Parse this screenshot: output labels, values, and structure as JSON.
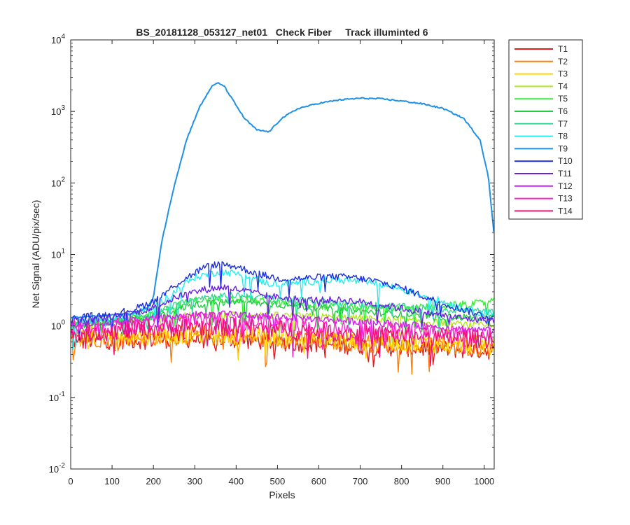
{
  "chart_data": {
    "type": "line",
    "title": "BS_20181128_053127_net01   Check Fiber     Track illuminted 6",
    "xlabel": "Pixels",
    "ylabel": "Net Signal (ADU/pix/sec)",
    "xlim": [
      0,
      1024
    ],
    "ylim": [
      0.01,
      10000
    ],
    "yscale": "log",
    "xticks": [
      0,
      100,
      200,
      300,
      400,
      500,
      600,
      700,
      800,
      900,
      1000
    ],
    "yticks": [
      {
        "value": 0.01,
        "base": "10",
        "exp": "-2"
      },
      {
        "value": 0.1,
        "base": "10",
        "exp": "-1"
      },
      {
        "value": 1,
        "base": "10",
        "exp": "0"
      },
      {
        "value": 10,
        "base": "10",
        "exp": "1"
      },
      {
        "value": 100,
        "base": "10",
        "exp": "2"
      },
      {
        "value": 1000,
        "base": "10",
        "exp": "3"
      },
      {
        "value": 10000,
        "base": "10",
        "exp": "4"
      }
    ],
    "grid": false,
    "legend_position": "outside-right-top",
    "series": [
      {
        "name": "T1",
        "color": "#e41a1c",
        "x": [
          0,
          100,
          200,
          300,
          400,
          500,
          600,
          700,
          800,
          900,
          1000,
          1024
        ],
        "y": [
          0.62,
          0.63,
          0.65,
          0.66,
          0.65,
          0.6,
          0.56,
          0.53,
          0.5,
          0.48,
          0.46,
          0.45
        ]
      },
      {
        "name": "T2",
        "color": "#ff7f00",
        "x": [
          0,
          100,
          200,
          300,
          400,
          500,
          600,
          700,
          800,
          900,
          1000,
          1024
        ],
        "y": [
          0.66,
          0.68,
          0.7,
          0.72,
          0.7,
          0.66,
          0.62,
          0.58,
          0.55,
          0.52,
          0.5,
          0.49
        ]
      },
      {
        "name": "T3",
        "color": "#ffd700",
        "x": [
          0,
          100,
          200,
          300,
          400,
          500,
          600,
          700,
          800,
          900,
          1000,
          1024
        ],
        "y": [
          0.7,
          0.72,
          0.74,
          0.76,
          0.74,
          0.7,
          0.66,
          0.62,
          0.59,
          0.56,
          0.54,
          0.53
        ]
      },
      {
        "name": "T4",
        "color": "#b4e61e",
        "x": [
          0,
          100,
          200,
          300,
          400,
          500,
          600,
          700,
          800,
          900,
          1000,
          1024
        ],
        "y": [
          1.05,
          1.15,
          1.3,
          1.4,
          1.45,
          1.4,
          1.35,
          1.28,
          1.2,
          1.1,
          1.0,
          0.98
        ]
      },
      {
        "name": "T5",
        "color": "#33ee33",
        "x": [
          0,
          100,
          200,
          300,
          400,
          500,
          600,
          700,
          800,
          900,
          1000,
          1024
        ],
        "y": [
          1.05,
          1.2,
          1.5,
          2.3,
          2.4,
          2.1,
          1.9,
          1.8,
          1.75,
          1.9,
          2.1,
          2.3
        ]
      },
      {
        "name": "T6",
        "color": "#22cc44",
        "x": [
          0,
          100,
          200,
          300,
          400,
          500,
          600,
          700,
          800,
          900,
          1000,
          1024
        ],
        "y": [
          1.0,
          1.15,
          1.35,
          2.0,
          2.2,
          2.0,
          1.8,
          1.6,
          1.45,
          1.35,
          1.3,
          1.3
        ]
      },
      {
        "name": "T7",
        "color": "#33dd99",
        "x": [
          0,
          100,
          200,
          300,
          400,
          500,
          600,
          700,
          800,
          900,
          1000,
          1024
        ],
        "y": [
          1.05,
          1.2,
          1.45,
          2.5,
          2.7,
          2.4,
          2.2,
          2.0,
          1.85,
          1.7,
          1.6,
          1.55
        ]
      },
      {
        "name": "T8",
        "color": "#22eeee",
        "x": [
          0,
          100,
          150,
          200,
          250,
          300,
          360,
          420,
          480,
          550,
          620,
          680,
          740,
          800,
          860,
          920,
          980,
          1024
        ],
        "y": [
          1.1,
          1.25,
          1.45,
          1.8,
          3.0,
          4.8,
          5.8,
          5.2,
          3.9,
          4.0,
          4.4,
          4.3,
          3.9,
          3.3,
          2.6,
          2.0,
          1.6,
          1.4
        ]
      },
      {
        "name": "T9",
        "color": "#1e90e6",
        "x": [
          0,
          150,
          185,
          200,
          220,
          250,
          280,
          310,
          340,
          355,
          370,
          390,
          420,
          450,
          480,
          510,
          550,
          600,
          650,
          700,
          750,
          800,
          850,
          900,
          950,
          990,
          1010,
          1024
        ],
        "y": [
          1.3,
          1.5,
          1.8,
          2.5,
          15,
          90,
          400,
          1100,
          2200,
          2500,
          2300,
          1500,
          800,
          550,
          520,
          800,
          1100,
          1300,
          1450,
          1530,
          1500,
          1400,
          1280,
          1100,
          800,
          400,
          120,
          18
        ]
      },
      {
        "name": "T10",
        "color": "#1a2edc",
        "x": [
          0,
          100,
          150,
          200,
          260,
          320,
          360,
          400,
          450,
          500,
          560,
          620,
          680,
          740,
          800,
          860,
          920,
          980,
          1024
        ],
        "y": [
          1.3,
          1.45,
          1.7,
          2.2,
          4.0,
          6.5,
          7.4,
          6.8,
          5.4,
          4.6,
          4.6,
          4.9,
          4.8,
          4.2,
          3.4,
          2.5,
          1.9,
          1.5,
          1.25
        ]
      },
      {
        "name": "T11",
        "color": "#6b1fe6",
        "x": [
          0,
          100,
          150,
          200,
          260,
          320,
          370,
          420,
          480,
          540,
          600,
          660,
          720,
          780,
          840,
          900,
          960,
          1024
        ],
        "y": [
          1.15,
          1.3,
          1.5,
          1.8,
          2.6,
          3.2,
          3.5,
          3.1,
          2.6,
          2.4,
          2.3,
          2.3,
          2.1,
          1.85,
          1.6,
          1.4,
          1.25,
          1.2
        ]
      },
      {
        "name": "T12",
        "color": "#cc22ee",
        "x": [
          0,
          100,
          200,
          300,
          400,
          500,
          600,
          700,
          800,
          900,
          1000,
          1024
        ],
        "y": [
          1.0,
          1.1,
          1.25,
          1.45,
          1.45,
          1.35,
          1.25,
          1.15,
          1.05,
          0.95,
          0.88,
          0.86
        ]
      },
      {
        "name": "T13",
        "color": "#ff22cc",
        "x": [
          0,
          100,
          200,
          300,
          400,
          500,
          600,
          700,
          800,
          900,
          1000,
          1024
        ],
        "y": [
          0.88,
          0.95,
          1.05,
          1.15,
          1.15,
          1.05,
          0.98,
          0.9,
          0.84,
          0.78,
          0.74,
          0.72
        ]
      },
      {
        "name": "T14",
        "color": "#ee1177",
        "x": [
          0,
          100,
          200,
          300,
          400,
          500,
          600,
          700,
          800,
          900,
          1000,
          1024
        ],
        "y": [
          0.78,
          0.85,
          0.92,
          0.98,
          0.96,
          0.9,
          0.84,
          0.78,
          0.73,
          0.69,
          0.66,
          0.65
        ]
      }
    ]
  }
}
